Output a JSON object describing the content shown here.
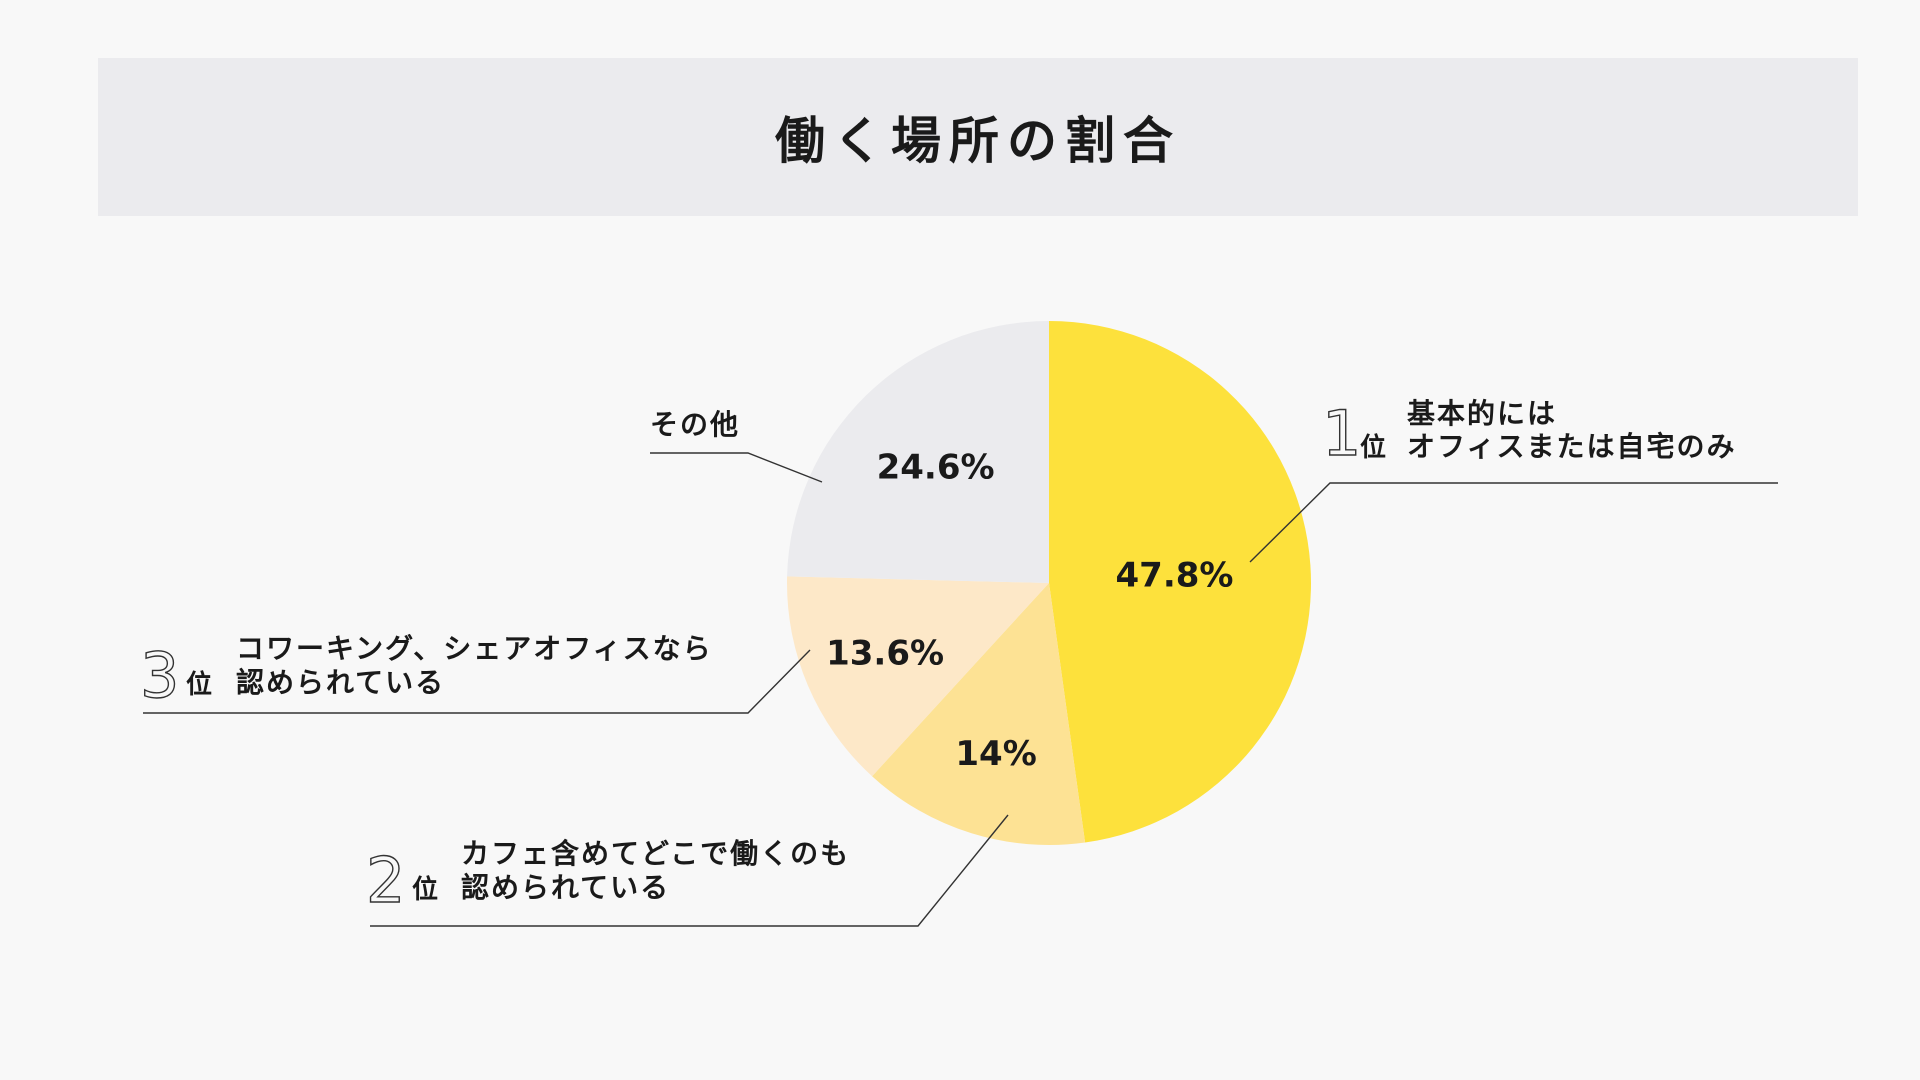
{
  "header": {
    "title": "働く場所の割合"
  },
  "chart_data": {
    "type": "pie",
    "title": "働く場所の割合",
    "start_angle_deg": 0,
    "direction": "clockwise",
    "slices": [
      {
        "rank": "1",
        "rank_suffix": "位",
        "label_lines": [
          "基本的には",
          "オフィスまたは自宅のみ"
        ],
        "value": 47.8,
        "value_label": "47.8%",
        "color": "#fde13c"
      },
      {
        "rank": "2",
        "rank_suffix": "位",
        "label_lines": [
          "カフェ含めてどこで働くのも",
          "認められている"
        ],
        "value": 14.0,
        "value_label": "14%",
        "color": "#fde294"
      },
      {
        "rank": "3",
        "rank_suffix": "位",
        "label_lines": [
          "コワーキング、シェアオフィスなら",
          "認められている"
        ],
        "value": 13.6,
        "value_label": "13.6%",
        "color": "#fde8c8"
      },
      {
        "rank": "",
        "rank_suffix": "",
        "label_lines": [
          "その他"
        ],
        "value": 24.6,
        "value_label": "24.6%",
        "color": "#ebebee"
      }
    ]
  }
}
